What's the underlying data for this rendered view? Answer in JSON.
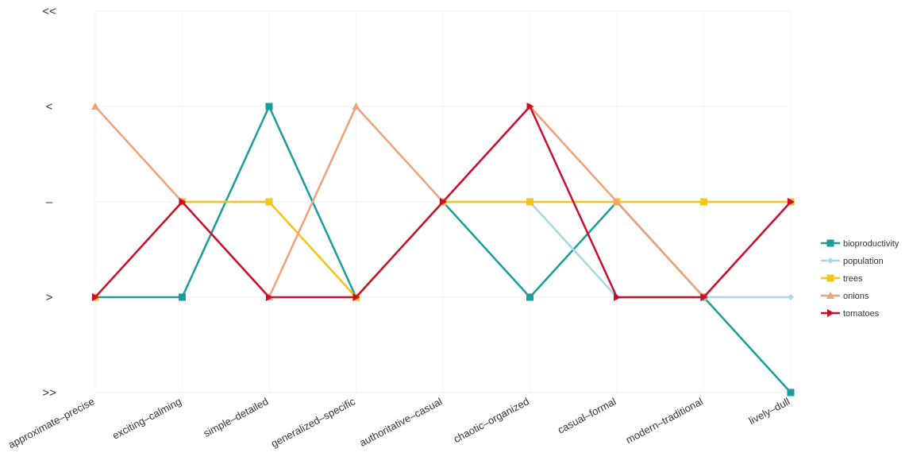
{
  "chart_data": {
    "type": "line",
    "categories": [
      "approximate–precise",
      "exciting–calming",
      "simple–detailed",
      "generalized–specific",
      "authoritative–casual",
      "chaotic–organized",
      "casual–formal",
      "modern–traditional",
      "lively–dull"
    ],
    "y_tick_labels": [
      "<<",
      "<",
      "–",
      ">",
      ">>"
    ],
    "ylim": [
      -2,
      2
    ],
    "grid": true,
    "legend_position": "right",
    "series": [
      {
        "name": "bioproductivity",
        "color": "#1a9c9c",
        "marker": "square",
        "values": [
          -1,
          -1,
          1,
          -1,
          0,
          -1,
          0,
          -1,
          -2
        ]
      },
      {
        "name": "population",
        "color": "#a8d8e6",
        "marker": "diamond",
        "values": [
          -1,
          0,
          0,
          -1,
          0,
          0,
          -1,
          -1,
          -1
        ]
      },
      {
        "name": "trees",
        "color": "#f5c518",
        "marker": "square",
        "values": [
          -1,
          0,
          0,
          -1,
          0,
          0,
          0,
          0,
          0
        ]
      },
      {
        "name": "onions",
        "color": "#f0a07a",
        "marker": "triangle-up",
        "values": [
          1,
          0,
          -1,
          1,
          0,
          1,
          0,
          -1,
          0
        ]
      },
      {
        "name": "tomatoes",
        "color": "#c8102e",
        "marker": "triangle-right",
        "values": [
          -1,
          0,
          -1,
          -1,
          0,
          1,
          -1,
          -1,
          0
        ]
      }
    ]
  }
}
